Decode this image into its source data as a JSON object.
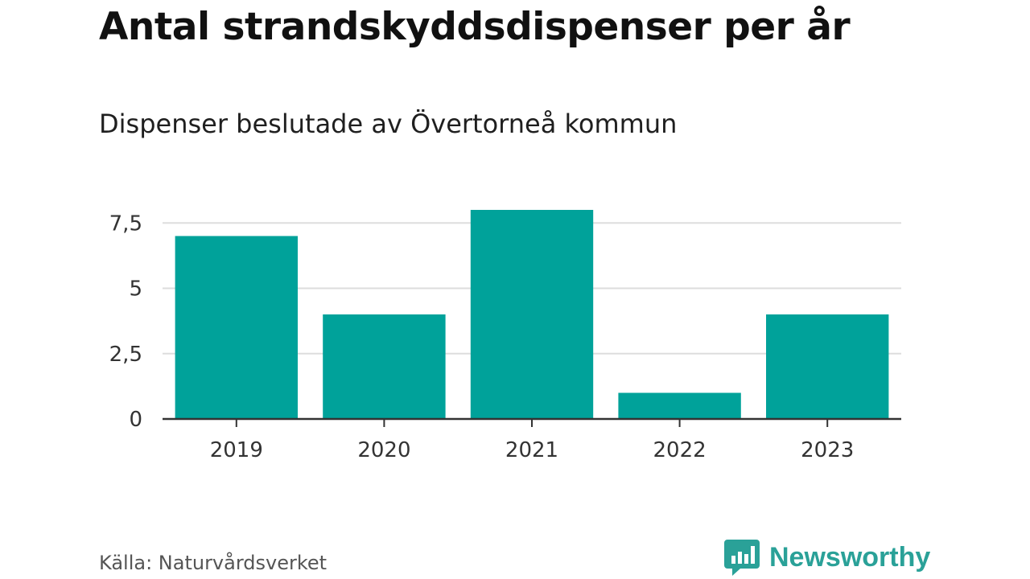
{
  "chart_data": {
    "type": "bar",
    "title": "Antal strandskyddsdispenser per år",
    "subtitle": "Dispenser beslutade av Övertorneå kommun",
    "categories": [
      "2019",
      "2020",
      "2021",
      "2022",
      "2023"
    ],
    "values": [
      7,
      4,
      8,
      1,
      4
    ],
    "yticks": [
      0,
      2.5,
      5,
      7.5
    ],
    "ytick_labels": [
      "0",
      "2,5",
      "5",
      "7,5"
    ],
    "ylim": [
      0,
      8
    ],
    "xlabel": "",
    "ylabel": "",
    "grid": true,
    "bar_color": "#00a29a",
    "source": "Källa: Naturvårdsverket"
  },
  "brand": {
    "name": "Newsworthy",
    "icon": "newsworthy-logo-icon",
    "color": "#2aa198"
  }
}
